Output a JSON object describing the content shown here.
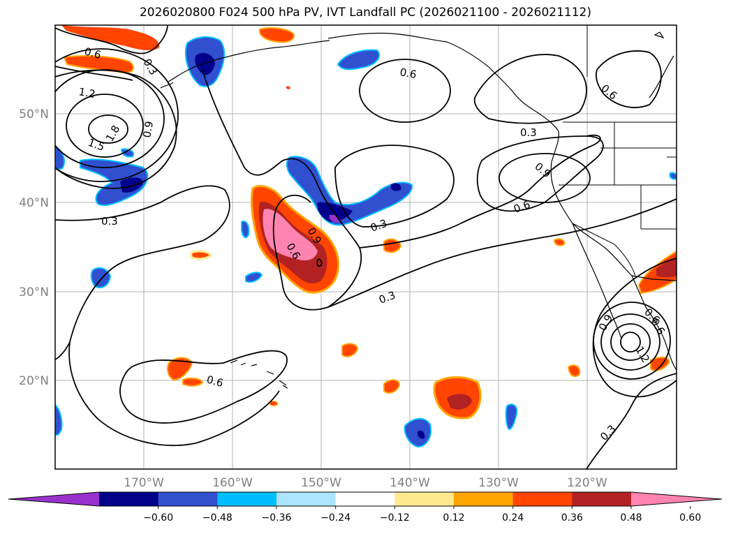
{
  "title": "2026020800 F024 500 hPa PV, IVT Landfall PC (2026021100 - 2026021112)",
  "lat_labels": [
    "50°N",
    "40°N",
    "30°N",
    "20°N"
  ],
  "lon_labels": [
    "170°W",
    "160°W",
    "150°W",
    "140°W",
    "130°W",
    "120°W"
  ],
  "contour_labels": [
    "0.6",
    "0.3",
    "1.2",
    "1.5",
    "1.8",
    "0.9",
    "0.3",
    "0.9",
    "0.6",
    "0.6",
    "0.3",
    "0.6",
    "0.3",
    "0.6",
    "0.9",
    "0.6",
    "0.3",
    "0.6",
    "0.9",
    "0.6",
    "1.2",
    "0.3"
  ],
  "colorbar": {
    "colors": [
      "#9932cc",
      "#00008b",
      "#3050d0",
      "#00bfff",
      "#ade4ff",
      "#ffffff",
      "#ffe98f",
      "#ffa500",
      "#ff4500",
      "#b22222",
      "#ff85b0"
    ],
    "tick_labels": [
      "−0.60",
      "−0.48",
      "−0.36",
      "−0.24",
      "−0.12",
      "0.12",
      "0.24",
      "0.36",
      "0.48",
      "0.60"
    ]
  }
}
